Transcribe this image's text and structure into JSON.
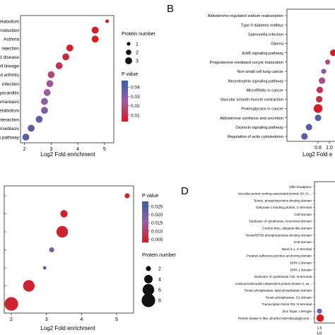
{
  "panel_letters": {
    "B": "B",
    "D": "D"
  },
  "colorbar_title": "P value",
  "size_legend_title": "Protein number",
  "chart_data": [
    {
      "panel": "A",
      "type": "scatter",
      "xlabel": "Log2 Fold enrichment",
      "xlim": [
        1.85,
        5.35
      ],
      "xticks": [
        "2",
        "3",
        "4",
        "5"
      ],
      "xtick_values": [
        2,
        3,
        4,
        5
      ],
      "categories": [
        "etabolism",
        "roduction",
        "Asthma",
        "rejection",
        "d disease",
        "ell lineage",
        "d arthritis",
        "infection",
        "yocarditis",
        "hmaniasis",
        "etabolism",
        "nteraction",
        "nseblasis",
        "n pathway"
      ],
      "x": [
        5.1,
        4.65,
        4.65,
        3.7,
        3.55,
        3.3,
        3.0,
        2.95,
        2.85,
        2.75,
        2.75,
        2.55,
        2.25,
        2.05
      ],
      "protein_number": [
        1,
        3,
        3,
        3,
        3,
        3,
        3,
        3,
        3,
        3,
        3,
        3,
        3,
        3
      ],
      "p_value": [
        0.005,
        0.005,
        0.005,
        0.005,
        0.008,
        0.012,
        0.018,
        0.022,
        0.025,
        0.028,
        0.032,
        0.038,
        0.04,
        0.04
      ],
      "size_legend": [
        "1",
        "2",
        "3"
      ],
      "colorbar_ticks": [
        "0.04",
        "0.03",
        "0.02",
        "0.01"
      ],
      "colorbar_tick_values": [
        0.04,
        0.03,
        0.02,
        0.01
      ],
      "colorbar_range": [
        0.003,
        0.047
      ],
      "colors": {
        "low": "#d7191c",
        "mid": "#9b5ea3",
        "high": "#3a5fa6"
      }
    },
    {
      "panel": "B",
      "type": "scatter",
      "xlabel": "Log2 Fold e",
      "xlim": [
        0.25,
        1.15
      ],
      "xticks": [
        "0.8",
        "1.0"
      ],
      "xtick_values": [
        0.8,
        1.0
      ],
      "categories": [
        "Aldosterone-regulated sodium reabsorption",
        "Type II diabetes mellitus",
        "Salmonella infection",
        "Glioma",
        "ErbB signaling pathway",
        "Progesterone-mediated oocyte maturation",
        "Non-small cell lung cancer",
        "Neurotrophin signaling pathway",
        "MicroRNAs in cancer",
        "Vascular smooth muscle contraction",
        "Proteoglycans in cancer",
        "Aldosterone synthesis and secretion",
        "Oxytocin signaling pathway",
        "Regulation of actin cytoskeleton"
      ],
      "x": [
        null,
        null,
        null,
        null,
        1.07,
        0.97,
        0.9,
        0.87,
        0.83,
        0.82,
        0.8,
        0.8,
        0.64,
        0.56
      ],
      "protein_number": [
        null,
        null,
        null,
        null,
        3,
        2,
        2,
        3,
        3,
        3,
        4,
        3,
        3,
        3
      ],
      "p_value": [
        null,
        null,
        null,
        null,
        0.005,
        0.02,
        0.03,
        0.02,
        0.012,
        0.01,
        0.005,
        0.04,
        0.04,
        0.04
      ]
    },
    {
      "panel": "C",
      "type": "scatter",
      "xlabel": "Log2 Fold enrichment",
      "xlim": [
        1.85,
        5.35
      ],
      "xticks": [
        "2",
        "3",
        "4",
        "5"
      ],
      "xtick_values": [
        2,
        3,
        4,
        5
      ],
      "x": [
        5.3,
        3.5,
        3.45,
        3.15,
        2.95,
        2.5,
        2.0
      ],
      "y_rank": [
        1,
        2,
        3,
        4,
        5,
        6,
        7
      ],
      "protein_number": [
        2,
        3,
        6,
        2,
        1,
        6,
        8
      ],
      "p_value": [
        0.005,
        0.005,
        0.005,
        0.02,
        0.025,
        0.005,
        0.005
      ],
      "colorbar_ticks": [
        "0.025",
        "0.020",
        "0.015",
        "0.010",
        "0.005"
      ],
      "colorbar_tick_values": [
        0.025,
        0.02,
        0.015,
        0.01,
        0.005
      ],
      "colorbar_range": [
        0.003,
        0.028
      ],
      "size_legend": [
        "2",
        "4",
        "6",
        "8"
      ]
    },
    {
      "panel": "D",
      "type": "scatter",
      "xlabel": "Lo",
      "xticks": [
        "1.5"
      ],
      "categories": [
        "Villin headpiece",
        "Vacuolar protein sorting-associated protein 54, N-...",
        "Tensin, phosphotyrosine-binding domain",
        "Ionkyrase 1-binding protein, C-terminal",
        "Ctdf domain",
        "Dedicator of cytokinesis, N-terminal domain",
        "Cordon-bleu, ubiquitin-like domain",
        "Tensin/EPS8 phosphotyrosine binding domain",
        "SAB domain",
        "Band 4.1, C-terminal",
        "Putative adherens-junction anchoring domain",
        "DHR-2 domain",
        "DHR-1 domain",
        "Dedicator of cytokinesis C/D, N-terminal",
        "Calcium/calmodulin-dependent protein kinase II, as...",
        "Tensin phosphatase, lipid phosphatase domain",
        "Tensin phosphatase, C2 domain",
        "Transcription factor RS, N-terminal",
        "Zinc finger, LIM-type",
        "Protein kinase C-like, phorbol ester/diacylglycerol..."
      ]
    }
  ]
}
